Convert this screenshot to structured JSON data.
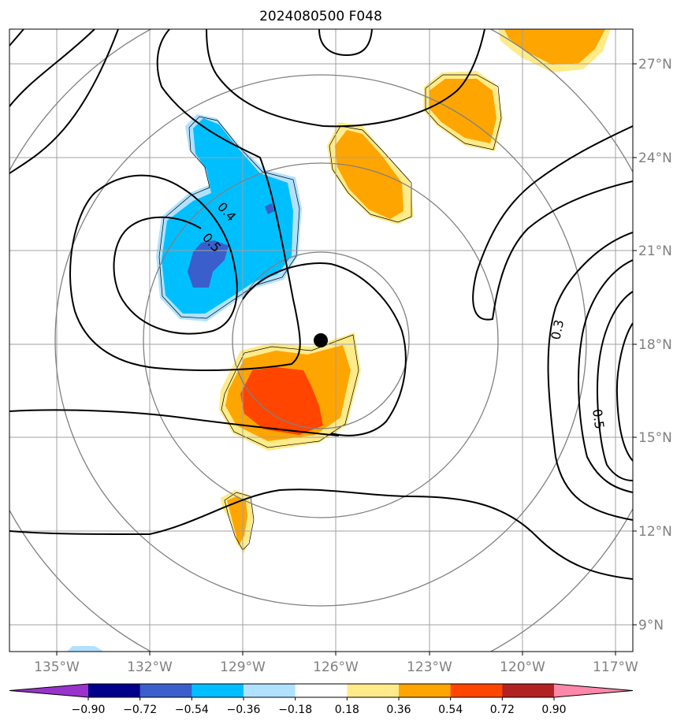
{
  "title": "2024080500 F048",
  "x_ticks": [
    "135°W",
    "132°W",
    "129°W",
    "126°W",
    "123°W",
    "120°W",
    "117°W"
  ],
  "y_ticks": [
    "27°N",
    "24°N",
    "21°N",
    "18°N",
    "15°N",
    "12°N",
    "9°N"
  ],
  "contour_labels": [
    "0.4",
    "0.5",
    "0.3",
    "0.5"
  ],
  "colorbar": {
    "levels": [
      "−0.90",
      "−0.72",
      "−0.54",
      "−0.36",
      "−0.18",
      "0.18",
      "0.36",
      "0.54",
      "0.72",
      "0.90"
    ],
    "colors": [
      "#9933cc",
      "#00008b",
      "#3a5fcd",
      "#00bfff",
      "#b0e2ff",
      "#ffffff",
      "#ffeb8a",
      "#ffa500",
      "#ff4500",
      "#b22222",
      "#ff88aa"
    ]
  },
  "colors": {
    "grid": "#a0a0a0",
    "rings": "#808080",
    "contour": "#000000",
    "center_marker": "#000000"
  }
}
